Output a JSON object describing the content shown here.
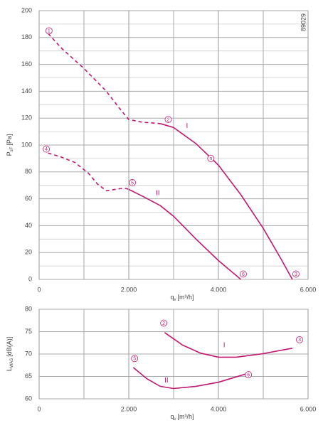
{
  "chart_data": [
    {
      "type": "line",
      "id_label": "89029",
      "ylabel": "P",
      "ylabel_sub": "sF",
      "ylabel_unit": "[Pa]",
      "xlabel": "q",
      "xlabel_sub": "v",
      "xlabel_unit": "[m³/h]",
      "xlim": [
        0,
        6000
      ],
      "ylim": [
        0,
        200
      ],
      "xticks": [
        0,
        {
          "value": 2000,
          "label": "2.000"
        },
        {
          "value": 4000,
          "label": "4.000"
        },
        {
          "value": 6000,
          "label": "6.000"
        }
      ],
      "yticks": [
        0,
        20,
        40,
        60,
        80,
        100,
        120,
        140,
        160,
        180,
        200
      ],
      "xgrid": [
        1000,
        3000,
        5000
      ],
      "ygrid": [
        10,
        30,
        50,
        70,
        90,
        110,
        130,
        150,
        170,
        190
      ],
      "series": [
        {
          "color": "#c2186f",
          "dashed": true,
          "x": [
            200,
            500,
            1000,
            1500,
            1800,
            2000,
            2300,
            2700
          ],
          "values": [
            183,
            172,
            157,
            140,
            127,
            119,
            117,
            116
          ]
        },
        {
          "color": "#c2186f",
          "dashed": false,
          "x": [
            2700,
            3000,
            3500,
            4000,
            4500,
            5000,
            5400,
            5650
          ],
          "values": [
            116,
            113,
            101,
            85,
            63,
            38,
            15,
            0
          ]
        },
        {
          "color": "#c2186f",
          "dashed": true,
          "x": [
            200,
            500,
            800,
            1100,
            1300,
            1500,
            1700,
            1900,
            2000
          ],
          "values": [
            94,
            91,
            87,
            79,
            71,
            66,
            67,
            68,
            67
          ]
        },
        {
          "color": "#c2186f",
          "dashed": false,
          "x": [
            2000,
            2300,
            2700,
            3000,
            3500,
            4000,
            4500
          ],
          "values": [
            67,
            62,
            55,
            47,
            30,
            14,
            0
          ]
        }
      ],
      "points": [
        {
          "text": "1",
          "x": 220,
          "y": 185
        },
        {
          "text": "2",
          "x": 2880,
          "y": 119
        },
        {
          "text": "n",
          "x": 3830,
          "y": 90
        },
        {
          "text": "4",
          "x": 160,
          "y": 97
        },
        {
          "text": "5",
          "x": 2080,
          "y": 72
        },
        {
          "text": "6",
          "x": 4555,
          "y": 4
        },
        {
          "text": "3",
          "x": 5730,
          "y": 4
        }
      ],
      "annotations": [
        {
          "text": "I",
          "x": 3300,
          "y": 114
        },
        {
          "text": "II",
          "x": 2650,
          "y": 64
        }
      ]
    },
    {
      "type": "line",
      "ylabel": "L",
      "ylabel_sub": "WAS",
      "ylabel_unit": "[dB(A)]",
      "xlabel": "q",
      "xlabel_sub": "v",
      "xlabel_unit": "[m³/h]",
      "xlim": [
        0,
        6000
      ],
      "ylim": [
        60,
        80
      ],
      "xticks": [
        0,
        {
          "value": 2000,
          "label": "2.000"
        },
        {
          "value": 4000,
          "label": "4.000"
        },
        {
          "value": 6000,
          "label": "6.000"
        }
      ],
      "yticks": [
        60,
        65,
        70,
        75,
        80
      ],
      "xgrid": [
        1000,
        3000,
        5000
      ],
      "ygrid": [],
      "series": [
        {
          "color": "#c2186f",
          "dashed": false,
          "x": [
            2800,
            3200,
            3600,
            4000,
            4400,
            5000,
            5650
          ],
          "values": [
            74.8,
            72,
            70.2,
            69.3,
            69.3,
            70.1,
            71.3
          ]
        },
        {
          "color": "#c2186f",
          "dashed": false,
          "x": [
            2100,
            2400,
            2700,
            3000,
            3500,
            4000,
            4500,
            4650
          ],
          "values": [
            67,
            64.5,
            62.8,
            62.3,
            62.8,
            63.7,
            65.2,
            65.7
          ]
        }
      ],
      "points": [
        {
          "text": "2",
          "x": 2780,
          "y": 76.9
        },
        {
          "text": "3",
          "x": 5810,
          "y": 73.2
        },
        {
          "text": "5",
          "x": 2130,
          "y": 69
        },
        {
          "text": "6",
          "x": 4670,
          "y": 65.4
        }
      ],
      "annotations": [
        {
          "text": "I",
          "x": 4130,
          "y": 71.9
        },
        {
          "text": "II",
          "x": 2840,
          "y": 64.1
        }
      ]
    }
  ]
}
